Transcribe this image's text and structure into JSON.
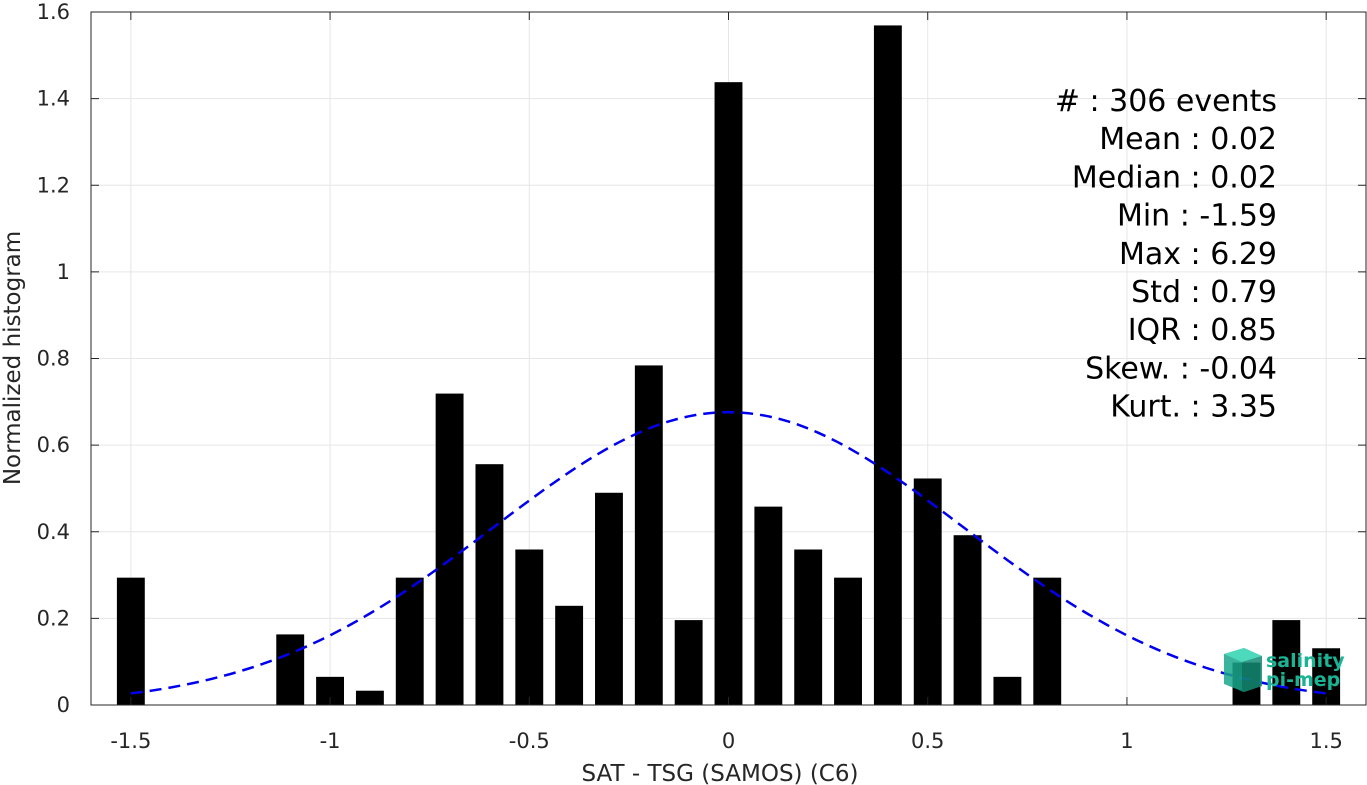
{
  "chart_data": {
    "type": "bar",
    "xlabel": "SAT - TSG (SAMOS) (C6)",
    "ylabel": "Normalized histogram",
    "xlim": [
      -1.6,
      1.6
    ],
    "ylim": [
      0,
      1.6
    ],
    "xticks": [
      -1.5,
      -1,
      -0.5,
      0,
      0.5,
      1,
      1.5
    ],
    "xtick_labels": [
      "-1.5",
      "-1",
      "-0.5",
      "0",
      "0.5",
      "1",
      "1.5"
    ],
    "yticks": [
      0,
      0.2,
      0.4,
      0.6,
      0.8,
      1,
      1.2,
      1.4,
      1.6
    ],
    "ytick_labels": [
      "0",
      "0.2",
      "0.4",
      "0.6",
      "0.8",
      "1",
      "1.2",
      "1.4",
      "1.6"
    ],
    "grid": true,
    "bar_color": "#000000",
    "bin_width": 0.1,
    "bars": [
      {
        "x": -1.5,
        "value": 0.294
      },
      {
        "x": -1.1,
        "value": 0.163
      },
      {
        "x": -1.0,
        "value": 0.065
      },
      {
        "x": -0.9,
        "value": 0.033
      },
      {
        "x": -0.8,
        "value": 0.294
      },
      {
        "x": -0.7,
        "value": 0.719
      },
      {
        "x": -0.6,
        "value": 0.556
      },
      {
        "x": -0.5,
        "value": 0.359
      },
      {
        "x": -0.4,
        "value": 0.229
      },
      {
        "x": -0.3,
        "value": 0.49
      },
      {
        "x": -0.2,
        "value": 0.784
      },
      {
        "x": -0.1,
        "value": 0.196
      },
      {
        "x": 0.0,
        "value": 1.438
      },
      {
        "x": 0.1,
        "value": 0.458
      },
      {
        "x": 0.2,
        "value": 0.359
      },
      {
        "x": 0.3,
        "value": 0.294
      },
      {
        "x": 0.4,
        "value": 1.569
      },
      {
        "x": 0.5,
        "value": 0.523
      },
      {
        "x": 0.6,
        "value": 0.392
      },
      {
        "x": 0.7,
        "value": 0.065
      },
      {
        "x": 0.8,
        "value": 0.294
      },
      {
        "x": 1.3,
        "value": 0.098
      },
      {
        "x": 1.4,
        "value": 0.196
      },
      {
        "x": 1.5,
        "value": 0.131
      }
    ],
    "fit_curve": {
      "style": "dashed",
      "color": "#0000ee",
      "mean": 0.0,
      "std": 0.59,
      "x_range": [
        -1.5,
        1.5
      ]
    },
    "stats": [
      "#  : 306 events",
      "Mean : 0.02",
      "Median : 0.02",
      "Min : -1.59",
      "Max : 6.29",
      "Std : 0.79",
      "IQR : 0.85",
      "Skew. : -0.04",
      "Kurt. : 3.35"
    ]
  },
  "logo": {
    "line1": "salinity",
    "line2": "pi-mep",
    "color": "#1ab394"
  }
}
